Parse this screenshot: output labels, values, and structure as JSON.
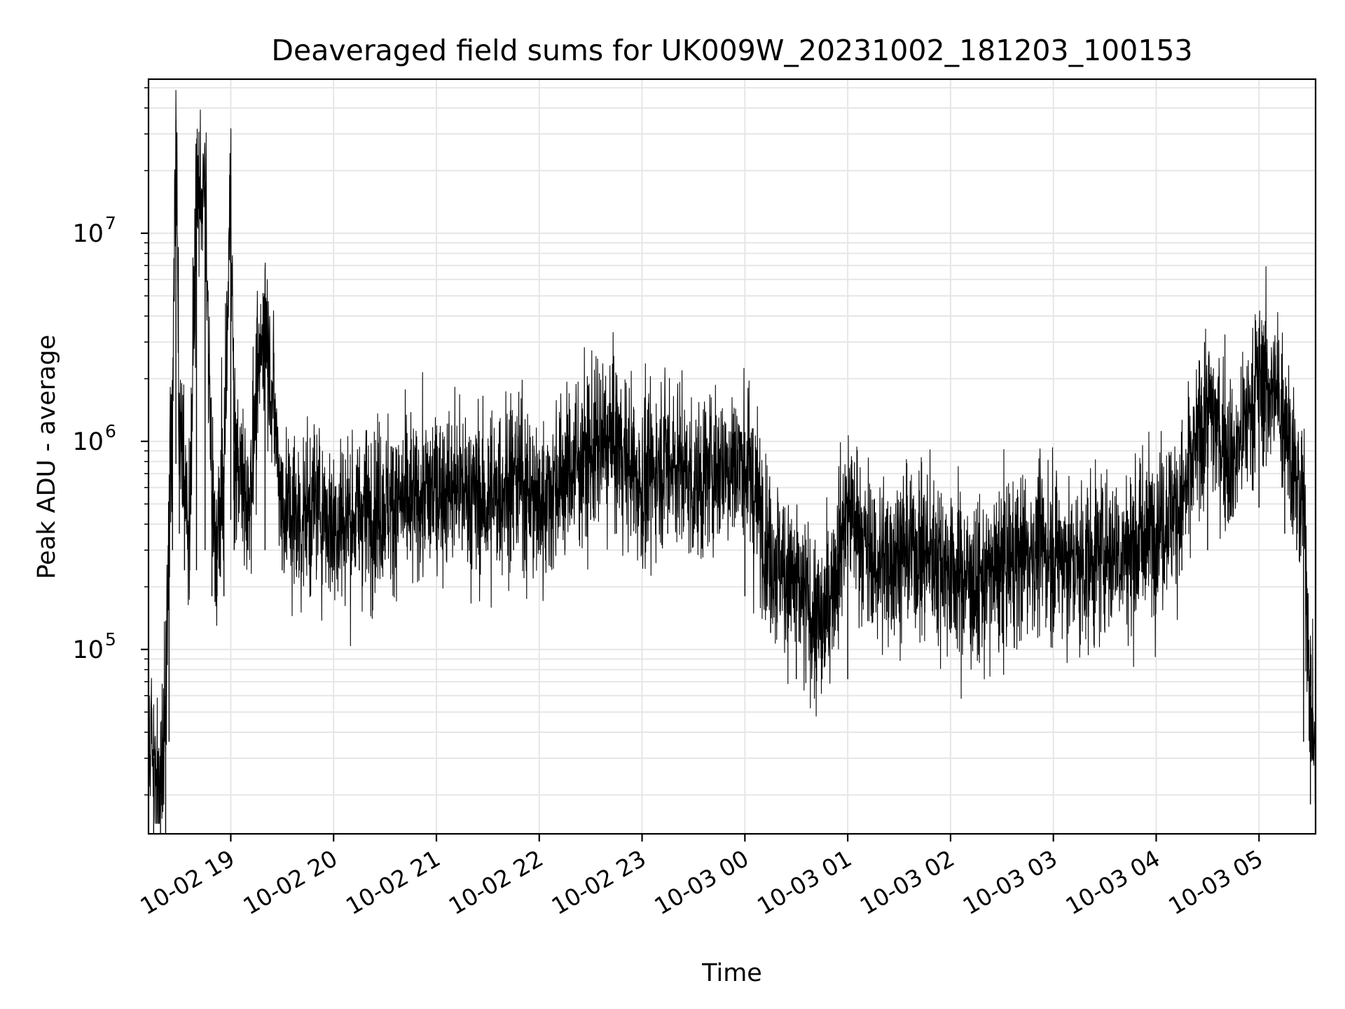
{
  "chart_data": {
    "type": "line",
    "title": "Deaveraged field sums for UK009W_20231002_181203_100153",
    "xlabel": "Time",
    "ylabel": "Peak ADU - average",
    "yscale": "log",
    "ylim": [
      13000,
      55000000
    ],
    "xlim": [
      "2023-10-02 18:12",
      "2023-10-03 05:33"
    ],
    "grid": true,
    "x_tick_labels": [
      "10-02 19",
      "10-02 20",
      "10-02 21",
      "10-02 22",
      "10-02 23",
      "10-03 00",
      "10-03 01",
      "10-03 02",
      "10-03 03",
      "10-03 04",
      "10-03 05"
    ],
    "y_ticks": [
      {
        "value": 100000,
        "base": "10",
        "exp": "5"
      },
      {
        "value": 1000000,
        "base": "10",
        "exp": "6"
      },
      {
        "value": 10000000,
        "base": "10",
        "exp": "7"
      }
    ],
    "series": [
      {
        "color": "#000000",
        "x": [
          "2023-10-02 18:12",
          "2023-10-02 18:15",
          "2023-10-02 18:19",
          "2023-10-02 18:22",
          "2023-10-02 18:24",
          "2023-10-02 18:26",
          "2023-10-02 18:28",
          "2023-10-02 18:30",
          "2023-10-02 18:33",
          "2023-10-02 18:36",
          "2023-10-02 18:40",
          "2023-10-02 18:45",
          "2023-10-02 18:49",
          "2023-10-02 18:52",
          "2023-10-02 18:56",
          "2023-10-02 19:00",
          "2023-10-02 19:02",
          "2023-10-02 19:10",
          "2023-10-02 19:20",
          "2023-10-02 19:30",
          "2023-10-02 19:40",
          "2023-10-02 19:50",
          "2023-10-02 20:00",
          "2023-10-02 20:15",
          "2023-10-02 20:30",
          "2023-10-02 20:45",
          "2023-10-02 21:00",
          "2023-10-02 21:15",
          "2023-10-02 21:30",
          "2023-10-02 21:45",
          "2023-10-02 22:00",
          "2023-10-02 22:15",
          "2023-10-02 22:30",
          "2023-10-02 22:45",
          "2023-10-02 23:00",
          "2023-10-02 23:15",
          "2023-10-02 23:30",
          "2023-10-02 23:45",
          "2023-10-03 00:00",
          "2023-10-03 00:15",
          "2023-10-03 00:30",
          "2023-10-03 00:45",
          "2023-10-03 01:00",
          "2023-10-03 01:15",
          "2023-10-03 01:30",
          "2023-10-03 01:45",
          "2023-10-03 02:00",
          "2023-10-03 02:15",
          "2023-10-03 02:30",
          "2023-10-03 02:45",
          "2023-10-03 03:00",
          "2023-10-03 03:15",
          "2023-10-03 03:30",
          "2023-10-03 03:45",
          "2023-10-03 04:00",
          "2023-10-03 04:15",
          "2023-10-03 04:30",
          "2023-10-03 04:45",
          "2023-10-03 05:00",
          "2023-10-03 05:15",
          "2023-10-03 05:22",
          "2023-10-03 05:26",
          "2023-10-03 05:30",
          "2023-10-03 05:33"
        ],
        "y": [
          40000,
          30000,
          20000,
          60000,
          500000,
          1500000,
          35000000,
          1300000,
          600000,
          400000,
          15000000,
          17000000,
          500000,
          300000,
          700000,
          19000000,
          900000,
          500000,
          4300000,
          500000,
          400000,
          500000,
          400000,
          450000,
          500000,
          500000,
          600000,
          600000,
          500000,
          700000,
          500000,
          700000,
          900000,
          1000000,
          600000,
          900000,
          600000,
          800000,
          800000,
          300000,
          200000,
          120000,
          500000,
          250000,
          300000,
          300000,
          250000,
          200000,
          250000,
          300000,
          300000,
          250000,
          300000,
          300000,
          400000,
          500000,
          1500000,
          800000,
          2000000,
          1500000,
          600000,
          500000,
          60000,
          30000
        ]
      }
    ]
  }
}
